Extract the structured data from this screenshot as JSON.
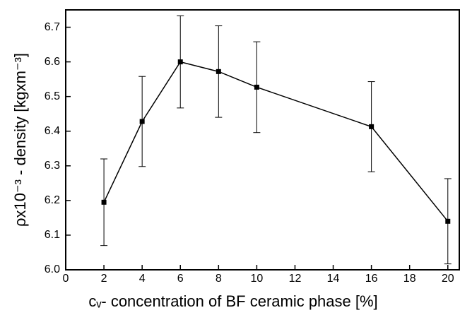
{
  "chart_data": {
    "type": "line",
    "x_label": "cᵥ- concentration of BF ceramic phase [%]",
    "y_label": "ρx10⁻³ - density [kgxm⁻³]",
    "x": [
      2,
      4,
      6,
      8,
      10,
      16,
      20
    ],
    "series": [
      {
        "color": "#000000",
        "values": [
          6.195,
          6.428,
          6.6,
          6.572,
          6.527,
          6.413,
          6.14
        ],
        "errors": [
          0.125,
          0.13,
          0.133,
          0.132,
          0.131,
          0.13,
          0.123
        ]
      }
    ],
    "xlim": [
      0,
      20.6
    ],
    "ylim": [
      6.0,
      6.75
    ],
    "xticks": [
      0,
      2,
      4,
      6,
      8,
      10,
      12,
      14,
      16,
      18,
      20
    ],
    "yticks": [
      {
        "value": 6.0,
        "label": "6.0"
      },
      6.1,
      6.2,
      6.3,
      6.4,
      6.5,
      6.6,
      6.7
    ]
  }
}
